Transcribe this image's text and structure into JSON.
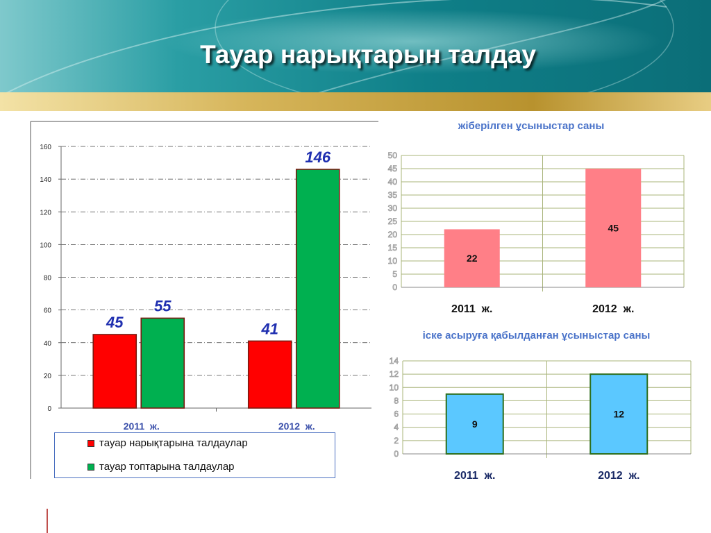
{
  "slide": {
    "title": "Тауар нарықтарын талдау"
  },
  "colors": {
    "header_teal": "#1e8e96",
    "gold_band": "#c7a64a",
    "red_bar": "#ff0000",
    "green_bar": "#00b050",
    "pink_bar": "#ff7f87",
    "blue_bar": "#5bc8ff",
    "value_label": "#1f2fb0"
  },
  "legend": {
    "items": [
      {
        "label": "тауар нарықтарына талдаулар",
        "color": "#ff0000"
      },
      {
        "label": "тауар топтарына талдаулар",
        "color": "#00b050"
      }
    ]
  },
  "chart_data": [
    {
      "type": "bar",
      "title": "",
      "categories": [
        "2011  ж.",
        "2012  ж."
      ],
      "series": [
        {
          "name": "тауар нарықтарына талдаулар",
          "values": [
            45,
            41
          ],
          "color": "#ff0000"
        },
        {
          "name": "тауар топтарына талдаулар",
          "values": [
            55,
            146
          ],
          "color": "#00b050"
        }
      ],
      "ylim": [
        0,
        160
      ],
      "yticks": [
        0,
        20,
        40,
        60,
        80,
        100,
        120,
        140,
        160
      ],
      "grid": "dash-dot horizontal",
      "legend": "bottom"
    },
    {
      "type": "bar",
      "title": "жіберілген ұсыныстар саны",
      "categories": [
        "2011  ж.",
        "2012  ж."
      ],
      "values": [
        22,
        45
      ],
      "color": "#ff7f87",
      "ylim": [
        0,
        50
      ],
      "yticks": [
        0,
        5,
        10,
        15,
        20,
        25,
        30,
        35,
        40,
        45,
        50
      ],
      "grid": "horizontal and vertical"
    },
    {
      "type": "bar",
      "title": "іске асыруға қабылданған ұсыныстар саны",
      "categories": [
        "2011  ж.",
        "2012  ж."
      ],
      "values": [
        9,
        12
      ],
      "color": "#5bc8ff",
      "ylim": [
        0,
        14
      ],
      "yticks": [
        0,
        2,
        4,
        6,
        8,
        10,
        12,
        14
      ],
      "grid": "horizontal and vertical"
    }
  ]
}
